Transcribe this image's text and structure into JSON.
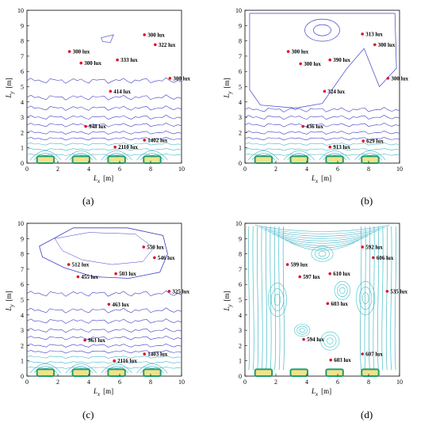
{
  "colors": {
    "contour_primary": "#3d3dc6",
    "contour_secondary": "#49b6c8",
    "contour_cyan": "#3fc2c8",
    "lamp_fill": "#f2e38a",
    "lamp_border": "#1f9e6e",
    "marker": "#e0102a"
  },
  "axes": {
    "xlabel_main": "L",
    "xlabel_sub": "x",
    "xlabel_unit": "[m]",
    "ylabel_main": "L",
    "ylabel_sub": "y",
    "ylabel_unit": "[m]",
    "xticks": [
      "0",
      "2",
      "4",
      "6",
      "8",
      "10"
    ],
    "yticks": [
      "0",
      "1",
      "2",
      "3",
      "4",
      "5",
      "6",
      "7",
      "8",
      "9",
      "10"
    ]
  },
  "chart_data": [
    {
      "type": "scatter",
      "caption": "(a)",
      "xlim": [
        0,
        10
      ],
      "ylim": [
        0,
        10
      ],
      "grid": false,
      "points": [
        {
          "x": 7.6,
          "y": 8.4,
          "label": "300 lux"
        },
        {
          "x": 8.3,
          "y": 7.75,
          "label": "322 lux"
        },
        {
          "x": 2.75,
          "y": 7.3,
          "label": "300 lux"
        },
        {
          "x": 5.85,
          "y": 6.75,
          "label": "333 lux"
        },
        {
          "x": 3.5,
          "y": 6.55,
          "label": "300 lux"
        },
        {
          "x": 9.25,
          "y": 5.55,
          "label": "300 lux"
        },
        {
          "x": 5.4,
          "y": 4.7,
          "label": "414 lux"
        },
        {
          "x": 3.8,
          "y": 2.4,
          "label": "948 lux"
        },
        {
          "x": 7.6,
          "y": 1.5,
          "label": "1402 lux"
        },
        {
          "x": 5.7,
          "y": 1.05,
          "label": "2110 lux"
        }
      ],
      "lamps_x": [
        1.2,
        3.5,
        5.8,
        8.1
      ]
    },
    {
      "type": "scatter",
      "caption": "(b)",
      "xlim": [
        0,
        10
      ],
      "ylim": [
        0,
        10
      ],
      "grid": false,
      "points": [
        {
          "x": 7.6,
          "y": 8.45,
          "label": "313 lux"
        },
        {
          "x": 8.4,
          "y": 7.75,
          "label": "300 lux"
        },
        {
          "x": 2.8,
          "y": 7.3,
          "label": "300 lux"
        },
        {
          "x": 5.5,
          "y": 6.75,
          "label": "390 lux"
        },
        {
          "x": 3.6,
          "y": 6.5,
          "label": "300 lux"
        },
        {
          "x": 9.25,
          "y": 5.55,
          "label": "300 lux"
        },
        {
          "x": 5.15,
          "y": 4.7,
          "label": "324 lux"
        },
        {
          "x": 3.75,
          "y": 2.4,
          "label": "436 lux"
        },
        {
          "x": 7.65,
          "y": 1.45,
          "label": "629 lux"
        },
        {
          "x": 5.5,
          "y": 1.05,
          "label": "913 lux"
        }
      ],
      "lamps_x": [
        1.2,
        3.5,
        5.8,
        8.1
      ]
    },
    {
      "type": "scatter",
      "caption": "(c)",
      "xlim": [
        0,
        10
      ],
      "ylim": [
        0,
        10
      ],
      "grid": false,
      "points": [
        {
          "x": 7.55,
          "y": 8.45,
          "label": "550 lux"
        },
        {
          "x": 8.25,
          "y": 7.75,
          "label": "546 lux"
        },
        {
          "x": 2.7,
          "y": 7.3,
          "label": "512 lux"
        },
        {
          "x": 5.75,
          "y": 6.7,
          "label": "503 lux"
        },
        {
          "x": 3.3,
          "y": 6.5,
          "label": "455 lux"
        },
        {
          "x": 9.2,
          "y": 5.55,
          "label": "325 lux"
        },
        {
          "x": 5.3,
          "y": 4.7,
          "label": "463 lux"
        },
        {
          "x": 3.75,
          "y": 2.35,
          "label": "963 lux"
        },
        {
          "x": 7.6,
          "y": 1.45,
          "label": "1403 lux"
        },
        {
          "x": 5.65,
          "y": 1.0,
          "label": "2116 lux"
        }
      ],
      "lamps_x": [
        1.2,
        3.5,
        5.8,
        8.1
      ]
    },
    {
      "type": "scatter",
      "caption": "(d)",
      "xlim": [
        0,
        10
      ],
      "ylim": [
        0,
        10
      ],
      "grid": false,
      "points": [
        {
          "x": 7.6,
          "y": 8.45,
          "label": "592 lux"
        },
        {
          "x": 8.3,
          "y": 7.75,
          "label": "606 lux"
        },
        {
          "x": 2.75,
          "y": 7.3,
          "label": "599 lux"
        },
        {
          "x": 5.5,
          "y": 6.7,
          "label": "610 lux"
        },
        {
          "x": 3.55,
          "y": 6.5,
          "label": "597 lux"
        },
        {
          "x": 9.2,
          "y": 5.55,
          "label": "535 lux"
        },
        {
          "x": 5.35,
          "y": 4.75,
          "label": "603 lux"
        },
        {
          "x": 3.8,
          "y": 2.4,
          "label": "594 lux"
        },
        {
          "x": 7.6,
          "y": 1.45,
          "label": "607 lux"
        },
        {
          "x": 5.55,
          "y": 1.05,
          "label": "603 lux"
        }
      ],
      "lamps_x": [
        1.2,
        3.5,
        5.8,
        8.1
      ]
    }
  ]
}
